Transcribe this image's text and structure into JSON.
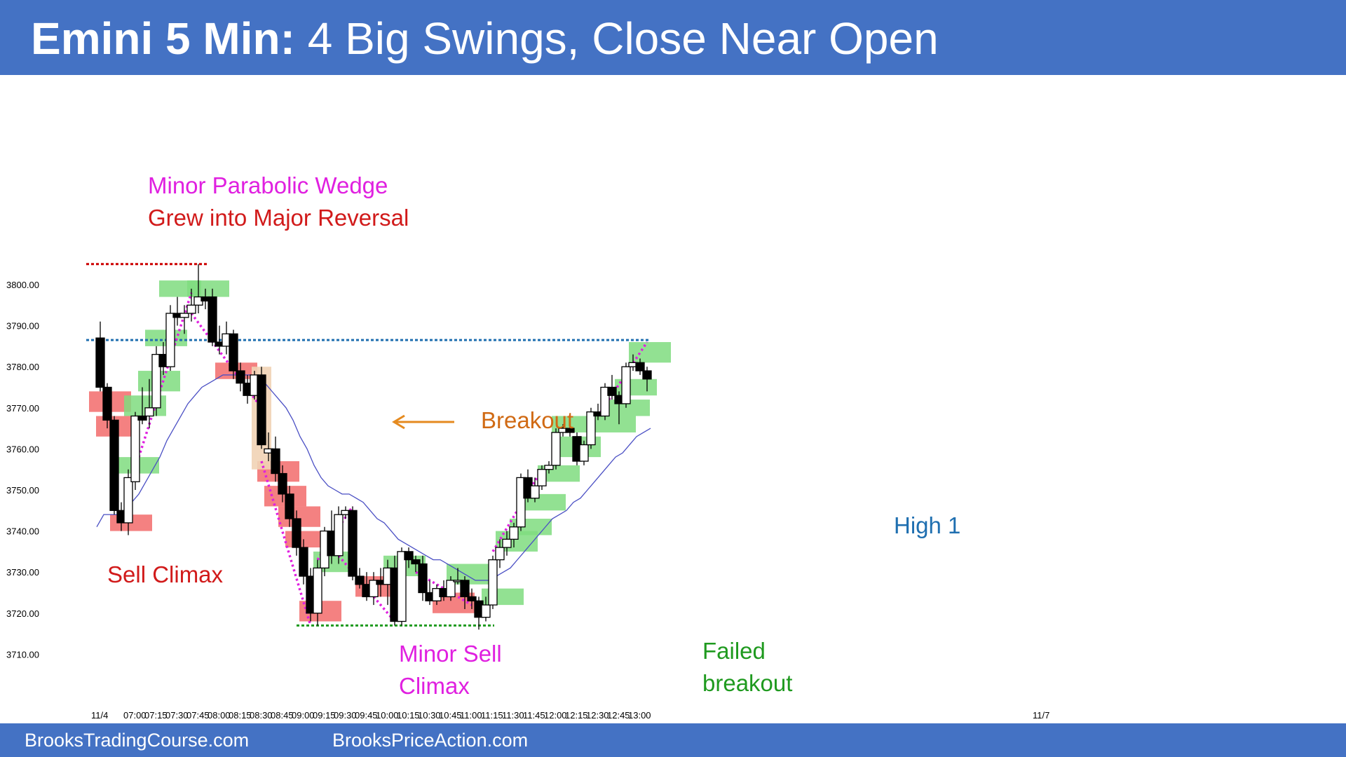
{
  "header": {
    "title_bold": "Emini 5 Min:",
    "title_rest": "4 Big Swings, Close Near Open"
  },
  "footer": {
    "left": "BrooksTradingCourse.com",
    "right": "BrooksPriceAction.com"
  },
  "colors": {
    "header_bg": "#4472c4",
    "bull_highlight": "#7fdc7f",
    "bear_highlight": "#f26b6b",
    "ema": "#4a4fc4",
    "wedge": "#e020e0",
    "breakout_arrow": "#e58a1f"
  },
  "chart_data": {
    "type": "candlestick",
    "title": "",
    "ylim": [
      3700,
      3815
    ],
    "yticks": [
      "3800.00",
      "3790.00",
      "3780.00",
      "3770.00",
      "3760.00",
      "3750.00",
      "3740.00",
      "3730.00",
      "3720.00",
      "3710.00"
    ],
    "xticks": [
      "11/4",
      "07:00",
      "07:15",
      "07:30",
      "07:45",
      "08:00",
      "08:15",
      "08:30",
      "08:45",
      "09:00",
      "09:15",
      "09:30",
      "09:45",
      "10:00",
      "10:15",
      "10:30",
      "10:45",
      "11:00",
      "11:15",
      "11:30",
      "11:45",
      "12:00",
      "12:15",
      "12:30",
      "12:45",
      "13:00",
      "11/7"
    ],
    "bars": [
      {
        "t": "06:35",
        "o": 3787,
        "h": 3791,
        "l": 3774,
        "c": 3775
      },
      {
        "t": "06:40",
        "o": 3775,
        "h": 3776,
        "l": 3765,
        "c": 3767
      },
      {
        "t": "06:45",
        "o": 3767,
        "h": 3768,
        "l": 3744,
        "c": 3745
      },
      {
        "t": "06:50",
        "o": 3745,
        "h": 3747,
        "l": 3740,
        "c": 3742
      },
      {
        "t": "06:55",
        "o": 3742,
        "h": 3755,
        "l": 3739,
        "c": 3753
      },
      {
        "t": "07:00",
        "o": 3752,
        "h": 3769,
        "l": 3750,
        "c": 3768
      },
      {
        "t": "07:05",
        "o": 3768,
        "h": 3775,
        "l": 3766,
        "c": 3767
      },
      {
        "t": "07:10",
        "o": 3768,
        "h": 3777,
        "l": 3765,
        "c": 3770
      },
      {
        "t": "07:15",
        "o": 3770,
        "h": 3785,
        "l": 3768,
        "c": 3783
      },
      {
        "t": "07:20",
        "o": 3783,
        "h": 3786,
        "l": 3778,
        "c": 3780
      },
      {
        "t": "07:25",
        "o": 3780,
        "h": 3795,
        "l": 3779,
        "c": 3793
      },
      {
        "t": "07:30",
        "o": 3793,
        "h": 3797,
        "l": 3790,
        "c": 3792
      },
      {
        "t": "07:35",
        "o": 3792,
        "h": 3795,
        "l": 3788,
        "c": 3793
      },
      {
        "t": "07:40",
        "o": 3793,
        "h": 3799,
        "l": 3791,
        "c": 3795
      },
      {
        "t": "07:45",
        "o": 3795,
        "h": 3805,
        "l": 3793,
        "c": 3797
      },
      {
        "t": "07:50",
        "o": 3797,
        "h": 3799,
        "l": 3794,
        "c": 3796
      },
      {
        "t": "07:55",
        "o": 3797,
        "h": 3799,
        "l": 3785,
        "c": 3786
      },
      {
        "t": "08:00",
        "o": 3786,
        "h": 3790,
        "l": 3783,
        "c": 3785
      },
      {
        "t": "08:05",
        "o": 3785,
        "h": 3791,
        "l": 3783,
        "c": 3788
      },
      {
        "t": "08:10",
        "o": 3788,
        "h": 3789,
        "l": 3777,
        "c": 3779
      },
      {
        "t": "08:15",
        "o": 3779,
        "h": 3781,
        "l": 3774,
        "c": 3776
      },
      {
        "t": "08:20",
        "o": 3776,
        "h": 3778,
        "l": 3771,
        "c": 3773
      },
      {
        "t": "08:25",
        "o": 3773,
        "h": 3779,
        "l": 3772,
        "c": 3778
      },
      {
        "t": "08:30",
        "o": 3778,
        "h": 3780,
        "l": 3760,
        "c": 3761
      },
      {
        "t": "08:35",
        "o": 3759,
        "h": 3764,
        "l": 3757,
        "c": 3760
      },
      {
        "t": "08:40",
        "o": 3760,
        "h": 3763,
        "l": 3752,
        "c": 3754
      },
      {
        "t": "08:45",
        "o": 3754,
        "h": 3756,
        "l": 3747,
        "c": 3749
      },
      {
        "t": "08:50",
        "o": 3749,
        "h": 3751,
        "l": 3741,
        "c": 3743
      },
      {
        "t": "08:55",
        "o": 3743,
        "h": 3745,
        "l": 3734,
        "c": 3736
      },
      {
        "t": "09:00",
        "o": 3736,
        "h": 3738,
        "l": 3727,
        "c": 3729
      },
      {
        "t": "09:05",
        "o": 3729,
        "h": 3731,
        "l": 3718,
        "c": 3720
      },
      {
        "t": "09:10",
        "o": 3720,
        "h": 3733,
        "l": 3717,
        "c": 3731
      },
      {
        "t": "09:15",
        "o": 3731,
        "h": 3741,
        "l": 3729,
        "c": 3740
      },
      {
        "t": "09:20",
        "o": 3740,
        "h": 3745,
        "l": 3732,
        "c": 3734
      },
      {
        "t": "09:25",
        "o": 3734,
        "h": 3746,
        "l": 3732,
        "c": 3744
      },
      {
        "t": "09:30",
        "o": 3744,
        "h": 3746,
        "l": 3743,
        "c": 3745
      },
      {
        "t": "09:35",
        "o": 3745,
        "h": 3746,
        "l": 3728,
        "c": 3729
      },
      {
        "t": "09:40",
        "o": 3729,
        "h": 3731,
        "l": 3726,
        "c": 3727
      },
      {
        "t": "09:45",
        "o": 3727,
        "h": 3730,
        "l": 3723,
        "c": 3724
      },
      {
        "t": "09:50",
        "o": 3724,
        "h": 3730,
        "l": 3722,
        "c": 3728
      },
      {
        "t": "09:55",
        "o": 3728,
        "h": 3731,
        "l": 3724,
        "c": 3727
      },
      {
        "t": "10:00",
        "o": 3727,
        "h": 3733,
        "l": 3722,
        "c": 3731
      },
      {
        "t": "10:05",
        "o": 3731,
        "h": 3734,
        "l": 3717,
        "c": 3718
      },
      {
        "t": "10:10",
        "o": 3718,
        "h": 3736,
        "l": 3717,
        "c": 3735
      },
      {
        "t": "10:15",
        "o": 3735,
        "h": 3736,
        "l": 3731,
        "c": 3733
      },
      {
        "t": "10:20",
        "o": 3733,
        "h": 3734,
        "l": 3730,
        "c": 3732
      },
      {
        "t": "10:25",
        "o": 3732,
        "h": 3734,
        "l": 3723,
        "c": 3725
      },
      {
        "t": "10:30",
        "o": 3725,
        "h": 3728,
        "l": 3722,
        "c": 3723
      },
      {
        "t": "10:35",
        "o": 3723,
        "h": 3727,
        "l": 3722,
        "c": 3726
      },
      {
        "t": "10:40",
        "o": 3726,
        "h": 3728,
        "l": 3723,
        "c": 3724
      },
      {
        "t": "10:45",
        "o": 3724,
        "h": 3729,
        "l": 3723,
        "c": 3728
      },
      {
        "t": "10:50",
        "o": 3728,
        "h": 3731,
        "l": 3727,
        "c": 3728
      },
      {
        "t": "10:55",
        "o": 3728,
        "h": 3729,
        "l": 3721,
        "c": 3724
      },
      {
        "t": "11:00",
        "o": 3724,
        "h": 3726,
        "l": 3721,
        "c": 3723
      },
      {
        "t": "11:05",
        "o": 3723,
        "h": 3724,
        "l": 3716,
        "c": 3719
      },
      {
        "t": "11:10",
        "o": 3719,
        "h": 3724,
        "l": 3718,
        "c": 3722
      },
      {
        "t": "11:15",
        "o": 3722,
        "h": 3734,
        "l": 3721,
        "c": 3733
      },
      {
        "t": "11:20",
        "o": 3733,
        "h": 3738,
        "l": 3731,
        "c": 3736
      },
      {
        "t": "11:25",
        "o": 3736,
        "h": 3740,
        "l": 3734,
        "c": 3738
      },
      {
        "t": "11:30",
        "o": 3738,
        "h": 3742,
        "l": 3736,
        "c": 3741
      },
      {
        "t": "11:35",
        "o": 3741,
        "h": 3754,
        "l": 3740,
        "c": 3753
      },
      {
        "t": "11:40",
        "o": 3753,
        "h": 3755,
        "l": 3747,
        "c": 3748
      },
      {
        "t": "11:45",
        "o": 3748,
        "h": 3753,
        "l": 3747,
        "c": 3751
      },
      {
        "t": "11:50",
        "o": 3751,
        "h": 3756,
        "l": 3750,
        "c": 3755
      },
      {
        "t": "11:55",
        "o": 3755,
        "h": 3757,
        "l": 3754,
        "c": 3756
      },
      {
        "t": "12:00",
        "o": 3756,
        "h": 3765,
        "l": 3755,
        "c": 3764
      },
      {
        "t": "12:05",
        "o": 3764,
        "h": 3766,
        "l": 3763,
        "c": 3765
      },
      {
        "t": "12:10",
        "o": 3765,
        "h": 3767,
        "l": 3763,
        "c": 3764
      },
      {
        "t": "12:15",
        "o": 3763,
        "h": 3764,
        "l": 3756,
        "c": 3757
      },
      {
        "t": "12:20",
        "o": 3757,
        "h": 3762,
        "l": 3756,
        "c": 3761
      },
      {
        "t": "12:25",
        "o": 3761,
        "h": 3770,
        "l": 3760,
        "c": 3769
      },
      {
        "t": "12:30",
        "o": 3769,
        "h": 3771,
        "l": 3767,
        "c": 3768
      },
      {
        "t": "12:35",
        "o": 3768,
        "h": 3776,
        "l": 3767,
        "c": 3775
      },
      {
        "t": "12:40",
        "o": 3775,
        "h": 3778,
        "l": 3772,
        "c": 3773
      },
      {
        "t": "12:45",
        "o": 3773,
        "h": 3774,
        "l": 3766,
        "c": 3771
      },
      {
        "t": "12:50",
        "o": 3771,
        "h": 3781,
        "l": 3770,
        "c": 3780
      },
      {
        "t": "12:55",
        "o": 3780,
        "h": 3783,
        "l": 3779,
        "c": 3781
      },
      {
        "t": "13:00",
        "o": 3781,
        "h": 3782,
        "l": 3778,
        "c": 3779
      },
      {
        "t": "13:05",
        "o": 3779,
        "h": 3780,
        "l": 3774,
        "c": 3777
      }
    ],
    "ema": [
      3741,
      3744,
      3744,
      3744,
      3745,
      3747,
      3749,
      3752,
      3755,
      3758,
      3762,
      3765,
      3768,
      3771,
      3773,
      3775,
      3776,
      3777,
      3778,
      3778,
      3778,
      3778,
      3778,
      3777,
      3776,
      3774,
      3772,
      3770,
      3767,
      3763,
      3760,
      3756,
      3753,
      3751,
      3750,
      3749,
      3749,
      3748,
      3747,
      3745,
      3743,
      3742,
      3740,
      3738,
      3737,
      3736,
      3735,
      3734,
      3733,
      3733,
      3732,
      3731,
      3730,
      3729,
      3728,
      3728,
      3728,
      3729,
      3730,
      3731,
      3733,
      3735,
      3737,
      3739,
      3741,
      3743,
      3744,
      3745,
      3747,
      3748,
      3750,
      3752,
      3754,
      3756,
      3758,
      3759,
      3761,
      3763,
      3764,
      3765
    ],
    "lines": [
      {
        "name": "prior-high",
        "price": 3805,
        "from": "06:35",
        "to": "07:45",
        "color": "#cc0000"
      },
      {
        "name": "open-level",
        "price": 3786.5,
        "from": "06:35",
        "to": "13:00",
        "color": "#1f6fb0"
      },
      {
        "name": "low-level",
        "price": 3717,
        "from": "09:05",
        "to": "11:10",
        "color": "#1f9a1f"
      }
    ],
    "annotations": [
      {
        "key": "minor_wedge",
        "text": "Minor Parabolic Wedge",
        "color": "#e020e0"
      },
      {
        "key": "major_reversal",
        "text": "Grew into Major Reversal",
        "color": "#d11a1a"
      },
      {
        "key": "sell_climax",
        "text": "Sell Climax",
        "color": "#d11a1a"
      },
      {
        "key": "breakout",
        "text": "Breakout",
        "color": "#d06a14"
      },
      {
        "key": "minor_sell_1",
        "text": "Minor Sell",
        "color": "#e020e0"
      },
      {
        "key": "minor_sell_2",
        "text": "Climax",
        "color": "#e020e0"
      },
      {
        "key": "failed_1",
        "text": "Failed",
        "color": "#1f9a1f"
      },
      {
        "key": "failed_2",
        "text": "breakout",
        "color": "#1f9a1f"
      },
      {
        "key": "high1",
        "text": "High 1",
        "color": "#1f6fb0"
      }
    ]
  }
}
